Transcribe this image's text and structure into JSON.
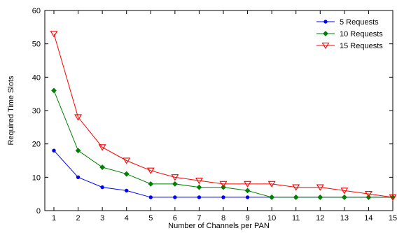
{
  "colors": {
    "axis": "#000000",
    "background": "#ffffff"
  },
  "chart_data": {
    "type": "line",
    "title": "",
    "xlabel": "Number of Channels per PAN",
    "ylabel": "Required Time Slots",
    "xlim": [
      0,
      15
    ],
    "ylim": [
      0,
      60
    ],
    "xticks": [
      1,
      2,
      3,
      4,
      5,
      6,
      7,
      8,
      9,
      10,
      11,
      12,
      13,
      14,
      15
    ],
    "yticks": [
      0,
      10,
      20,
      30,
      40,
      50,
      60
    ],
    "grid": false,
    "legend_position": "top-right",
    "x": [
      1,
      2,
      3,
      4,
      5,
      6,
      7,
      8,
      9,
      10,
      11,
      12,
      13,
      14,
      15
    ],
    "series": [
      {
        "name": "5 Requests",
        "color": "#0000ff",
        "marker": "dot",
        "values": [
          18,
          10,
          7,
          6,
          4,
          4,
          4,
          4,
          4,
          4,
          4,
          4,
          4,
          4,
          4
        ]
      },
      {
        "name": "10 Requests",
        "color": "#008000",
        "marker": "diamond",
        "values": [
          36,
          18,
          13,
          11,
          8,
          8,
          7,
          7,
          6,
          4,
          4,
          4,
          4,
          4,
          4
        ]
      },
      {
        "name": "15 Requests",
        "color": "#ff0000",
        "marker": "triangle-down",
        "values": [
          53,
          28,
          19,
          15,
          12,
          10,
          9,
          8,
          8,
          8,
          7,
          7,
          6,
          5,
          4
        ]
      }
    ]
  }
}
